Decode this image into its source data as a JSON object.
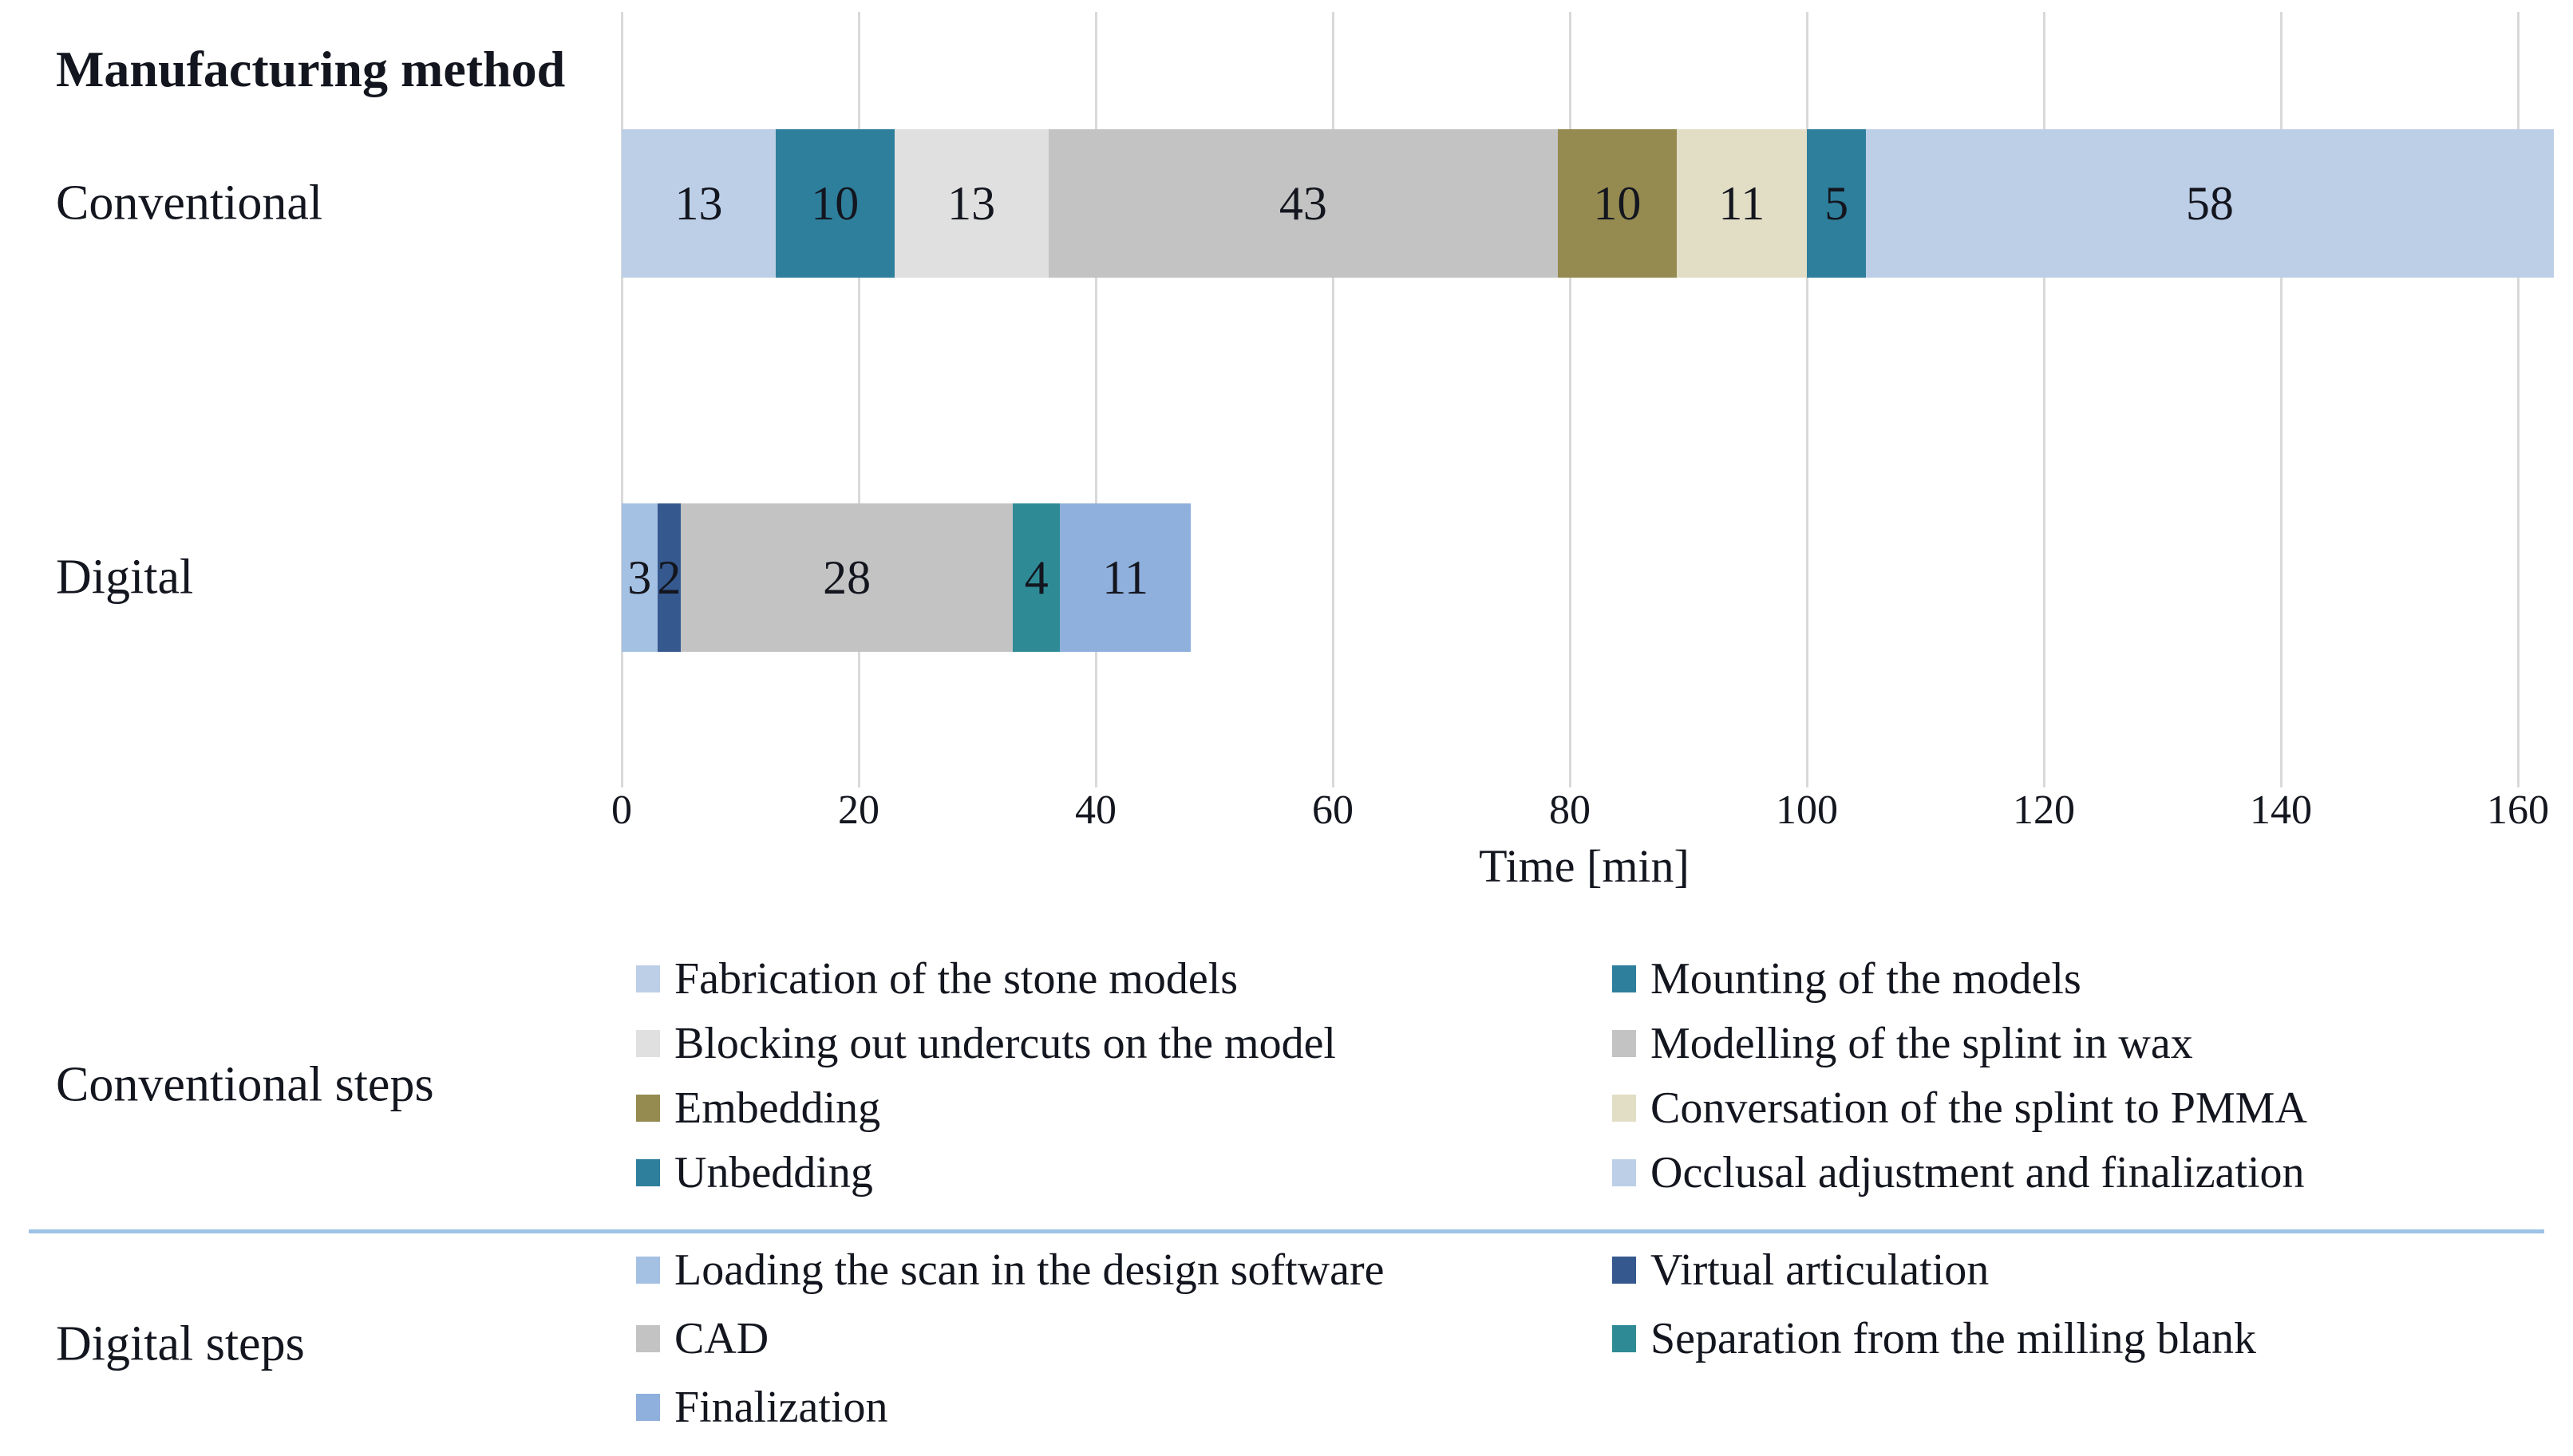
{
  "title": "Manufacturing method",
  "axis": {
    "title": "Time [min]",
    "ticks": [
      0,
      20,
      40,
      60,
      80,
      100,
      120,
      140,
      160
    ]
  },
  "chart_data": {
    "type": "bar",
    "orientation": "horizontal",
    "stacked": true,
    "xlabel": "Time [min]",
    "xlim": [
      0,
      160
    ],
    "x_tick_step": 20,
    "grid": true,
    "categories": [
      "Conventional",
      "Digital"
    ],
    "bars": [
      {
        "label": "Conventional",
        "total": 163,
        "segments": [
          {
            "step": "Fabrication of the stone models",
            "value": 13,
            "color": "#bdcfe7"
          },
          {
            "step": "Mounting of the models",
            "value": 10,
            "color": "#2e7f9c"
          },
          {
            "step": "Blocking out undercuts on the model",
            "value": 13,
            "color": "#e0e0e0"
          },
          {
            "step": "Modelling of the splint in wax",
            "value": 43,
            "color": "#c3c3c3"
          },
          {
            "step": "Embedding",
            "value": 10,
            "color": "#958b51"
          },
          {
            "step": "Conversation of the splint to PMMA",
            "value": 11,
            "color": "#e2dec5"
          },
          {
            "step": "Unbedding",
            "value": 5,
            "color": "#2e7f9c"
          },
          {
            "step": "Occlusal adjustment and finalization",
            "value": 58,
            "color": "#bdcfe7"
          }
        ]
      },
      {
        "label": "Digital",
        "total": 48,
        "segments": [
          {
            "step": "Loading the scan in the design software",
            "value": 3,
            "color": "#a4c1e3"
          },
          {
            "step": "Virtual articulation",
            "value": 2,
            "color": "#35598e"
          },
          {
            "step": "CAD",
            "value": 28,
            "color": "#c3c3c3"
          },
          {
            "step": "Separation from the milling blank",
            "value": 4,
            "color": "#2e8b96"
          },
          {
            "step": "Finalization",
            "value": 11,
            "color": "#8fafdc"
          }
        ]
      }
    ]
  },
  "legend": {
    "sections": [
      {
        "label": "Conventional steps",
        "columns": [
          [
            {
              "text": "Fabrication of the stone models",
              "color": "#bdcfe7"
            },
            {
              "text": "Blocking out undercuts on the model",
              "color": "#e0e0e0"
            },
            {
              "text": "Embedding",
              "color": "#958b51"
            },
            {
              "text": "Unbedding",
              "color": "#2e7f9c"
            }
          ],
          [
            {
              "text": "Mounting of the models",
              "color": "#2e7f9c"
            },
            {
              "text": "Modelling of the splint in wax",
              "color": "#c3c3c3"
            },
            {
              "text": "Conversation of the splint to PMMA",
              "color": "#e2dec5"
            },
            {
              "text": "Occlusal adjustment and finalization",
              "color": "#bdcfe7"
            }
          ]
        ]
      },
      {
        "label": "Digital steps",
        "columns": [
          [
            {
              "text": "Loading the scan in the design software",
              "color": "#a4c1e3"
            },
            {
              "text": "CAD",
              "color": "#c3c3c3"
            },
            {
              "text": "Finalization",
              "color": "#8fafdc"
            }
          ],
          [
            {
              "text": "Virtual articulation",
              "color": "#35598e"
            },
            {
              "text": "Separation from the milling blank",
              "color": "#2e8b96"
            }
          ]
        ]
      }
    ]
  },
  "colors": {
    "divider": "#9dc3e6",
    "gridline": "#d9d9d9",
    "text": "#14161f",
    "value_label": "#14161f"
  }
}
